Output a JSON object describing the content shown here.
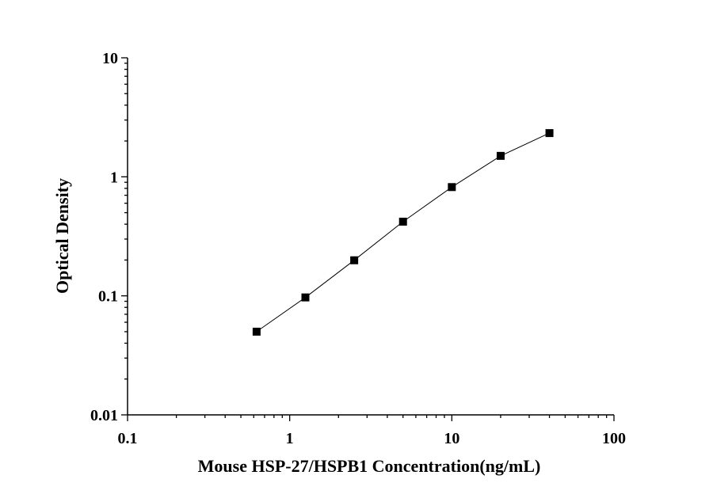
{
  "chart_data": {
    "type": "line",
    "xscale": "log",
    "yscale": "log",
    "xlim": [
      0.1,
      100
    ],
    "ylim": [
      0.01,
      10
    ],
    "xlabel": "Mouse HSP-27/HSPB1 Concentration(ng/mL)",
    "ylabel": "Optical Density",
    "x_ticks": [
      0.1,
      1,
      10,
      100
    ],
    "x_tick_labels": [
      "0.1",
      "1",
      "10",
      "100"
    ],
    "y_ticks": [
      0.01,
      0.1,
      1,
      10
    ],
    "y_tick_labels": [
      "0.01",
      "0.1",
      "1",
      "10"
    ],
    "grid": false,
    "marker": "square",
    "colors": {
      "series": "#000000",
      "axes": "#000000"
    },
    "series": [
      {
        "x": [
          0.625,
          1.25,
          2.5,
          5,
          10,
          20,
          40
        ],
        "y": [
          0.05,
          0.097,
          0.199,
          0.42,
          0.82,
          1.5,
          2.33
        ]
      }
    ]
  }
}
